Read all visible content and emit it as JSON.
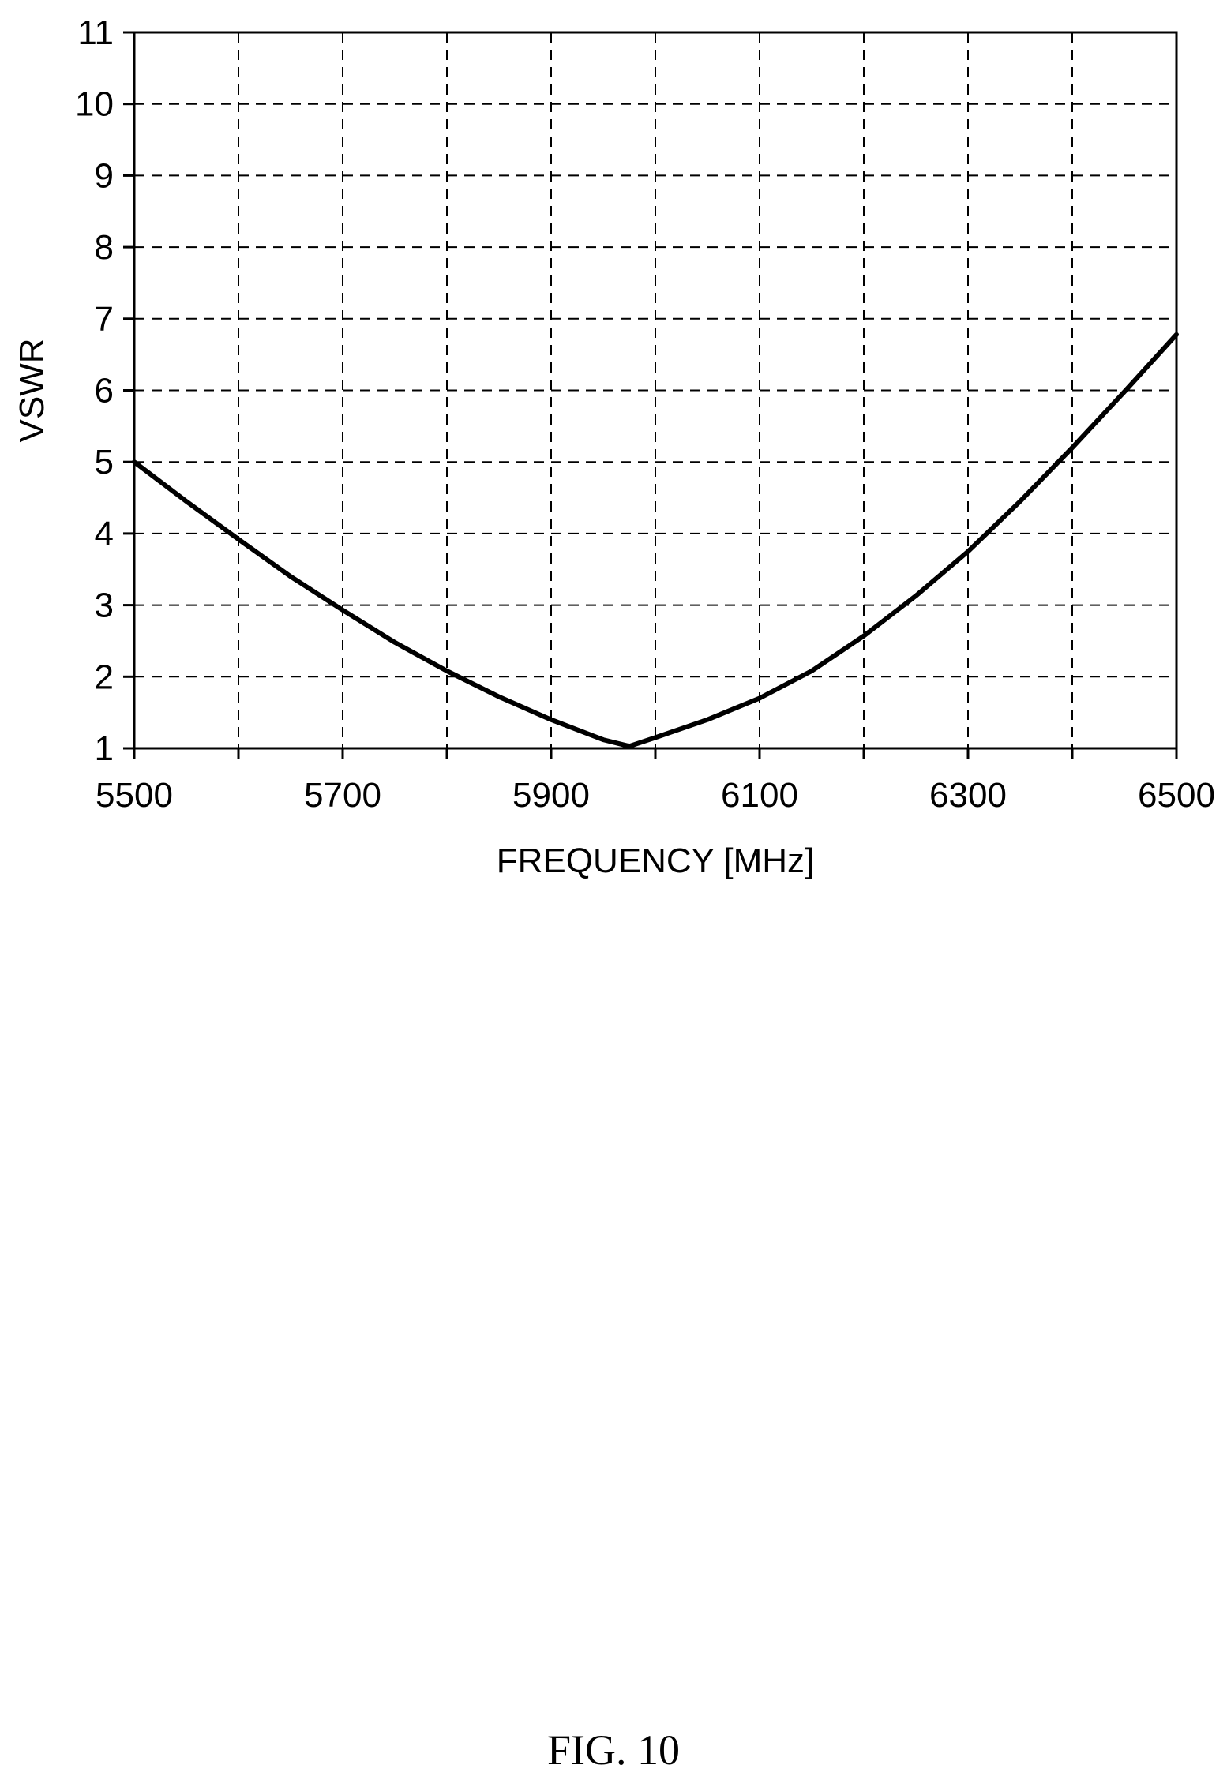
{
  "figure_caption": "FIG. 10",
  "chart_data": {
    "type": "line",
    "title": "",
    "xlabel": "FREQUENCY [MHz]",
    "ylabel": "VSWR",
    "xlim": [
      5500,
      6500
    ],
    "ylim": [
      1,
      11
    ],
    "x_tick_labels": [
      "5500",
      "5700",
      "5900",
      "6100",
      "6300",
      "6500"
    ],
    "x_tick_values": [
      5500,
      5700,
      5900,
      6100,
      6300,
      6500
    ],
    "x_grid_values": [
      5600,
      5700,
      5800,
      5900,
      6000,
      6100,
      6200,
      6300,
      6400
    ],
    "y_tick_values": [
      1,
      2,
      3,
      4,
      5,
      6,
      7,
      8,
      9,
      10,
      11
    ],
    "y_tick_labels": [
      "1",
      "2",
      "3",
      "4",
      "5",
      "6",
      "7",
      "8",
      "9",
      "10",
      "11"
    ],
    "grid": true,
    "legend": "none",
    "series": [
      {
        "color": "#000000",
        "x": [
          5500,
          5550,
          5600,
          5650,
          5700,
          5750,
          5800,
          5850,
          5900,
          5950,
          5975,
          6000,
          6050,
          6100,
          6150,
          6200,
          6250,
          6300,
          6350,
          6400,
          6450,
          6500
        ],
        "y": [
          5.0,
          4.45,
          3.92,
          3.4,
          2.93,
          2.48,
          2.08,
          1.72,
          1.4,
          1.12,
          1.03,
          1.15,
          1.4,
          1.7,
          2.08,
          2.57,
          3.13,
          3.75,
          4.45,
          5.2,
          5.98,
          6.78
        ]
      }
    ]
  }
}
